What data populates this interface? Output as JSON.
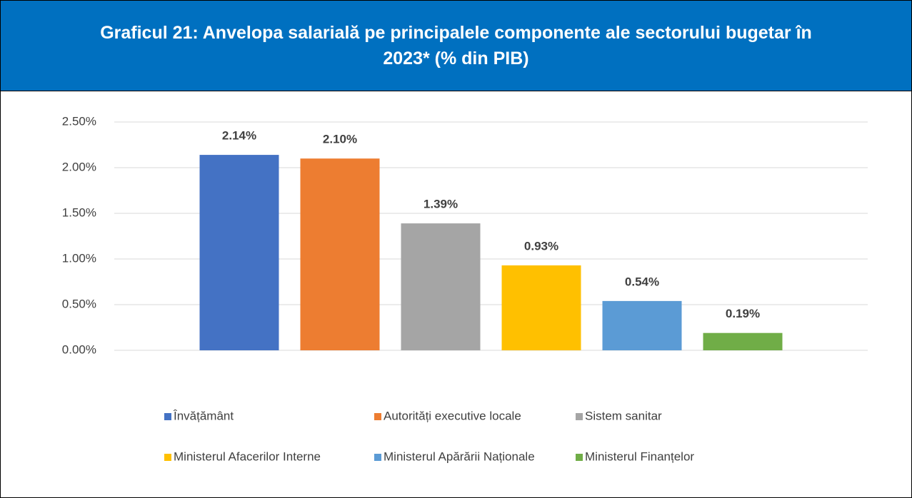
{
  "chart_data": {
    "type": "bar",
    "title": "Graficul 21: Anvelopa salarială pe principalele componente ale sectorului bugetar în 2023* (% din PIB)",
    "categories": [
      null
    ],
    "series": [
      {
        "name": "Învățământ",
        "color": "#4472c4",
        "values": [
          2.14
        ],
        "value_labels": [
          "2.14%"
        ]
      },
      {
        "name": "Autorități executive locale",
        "color": "#ed7d31",
        "values": [
          2.1
        ],
        "value_labels": [
          "2.10%"
        ]
      },
      {
        "name": "Sistem sanitar",
        "color": "#a5a5a5",
        "values": [
          1.39
        ],
        "value_labels": [
          "1.39%"
        ]
      },
      {
        "name": "Ministerul Afacerilor Interne",
        "color": "#ffc000",
        "values": [
          0.93
        ],
        "value_labels": [
          "0.93%"
        ]
      },
      {
        "name": "Ministerul Apărării Naționale",
        "color": "#5b9bd5",
        "values": [
          0.54
        ],
        "value_labels": [
          "0.54%"
        ]
      },
      {
        "name": "Ministerul Finanțelor",
        "color": "#70ad47",
        "values": [
          0.19
        ],
        "value_labels": [
          "0.19%"
        ]
      }
    ],
    "ylim": [
      0,
      2.5
    ],
    "yticks": [
      {
        "value": 0,
        "label": "0.00%"
      },
      {
        "value": 0.5,
        "label": "0.50%"
      },
      {
        "value": 1,
        "label": "1.00%"
      },
      {
        "value": 1.5,
        "label": "1.50%"
      },
      {
        "value": 2,
        "label": "2.00%"
      },
      {
        "value": 2.5,
        "label": "2.50%"
      }
    ],
    "grid": true
  }
}
